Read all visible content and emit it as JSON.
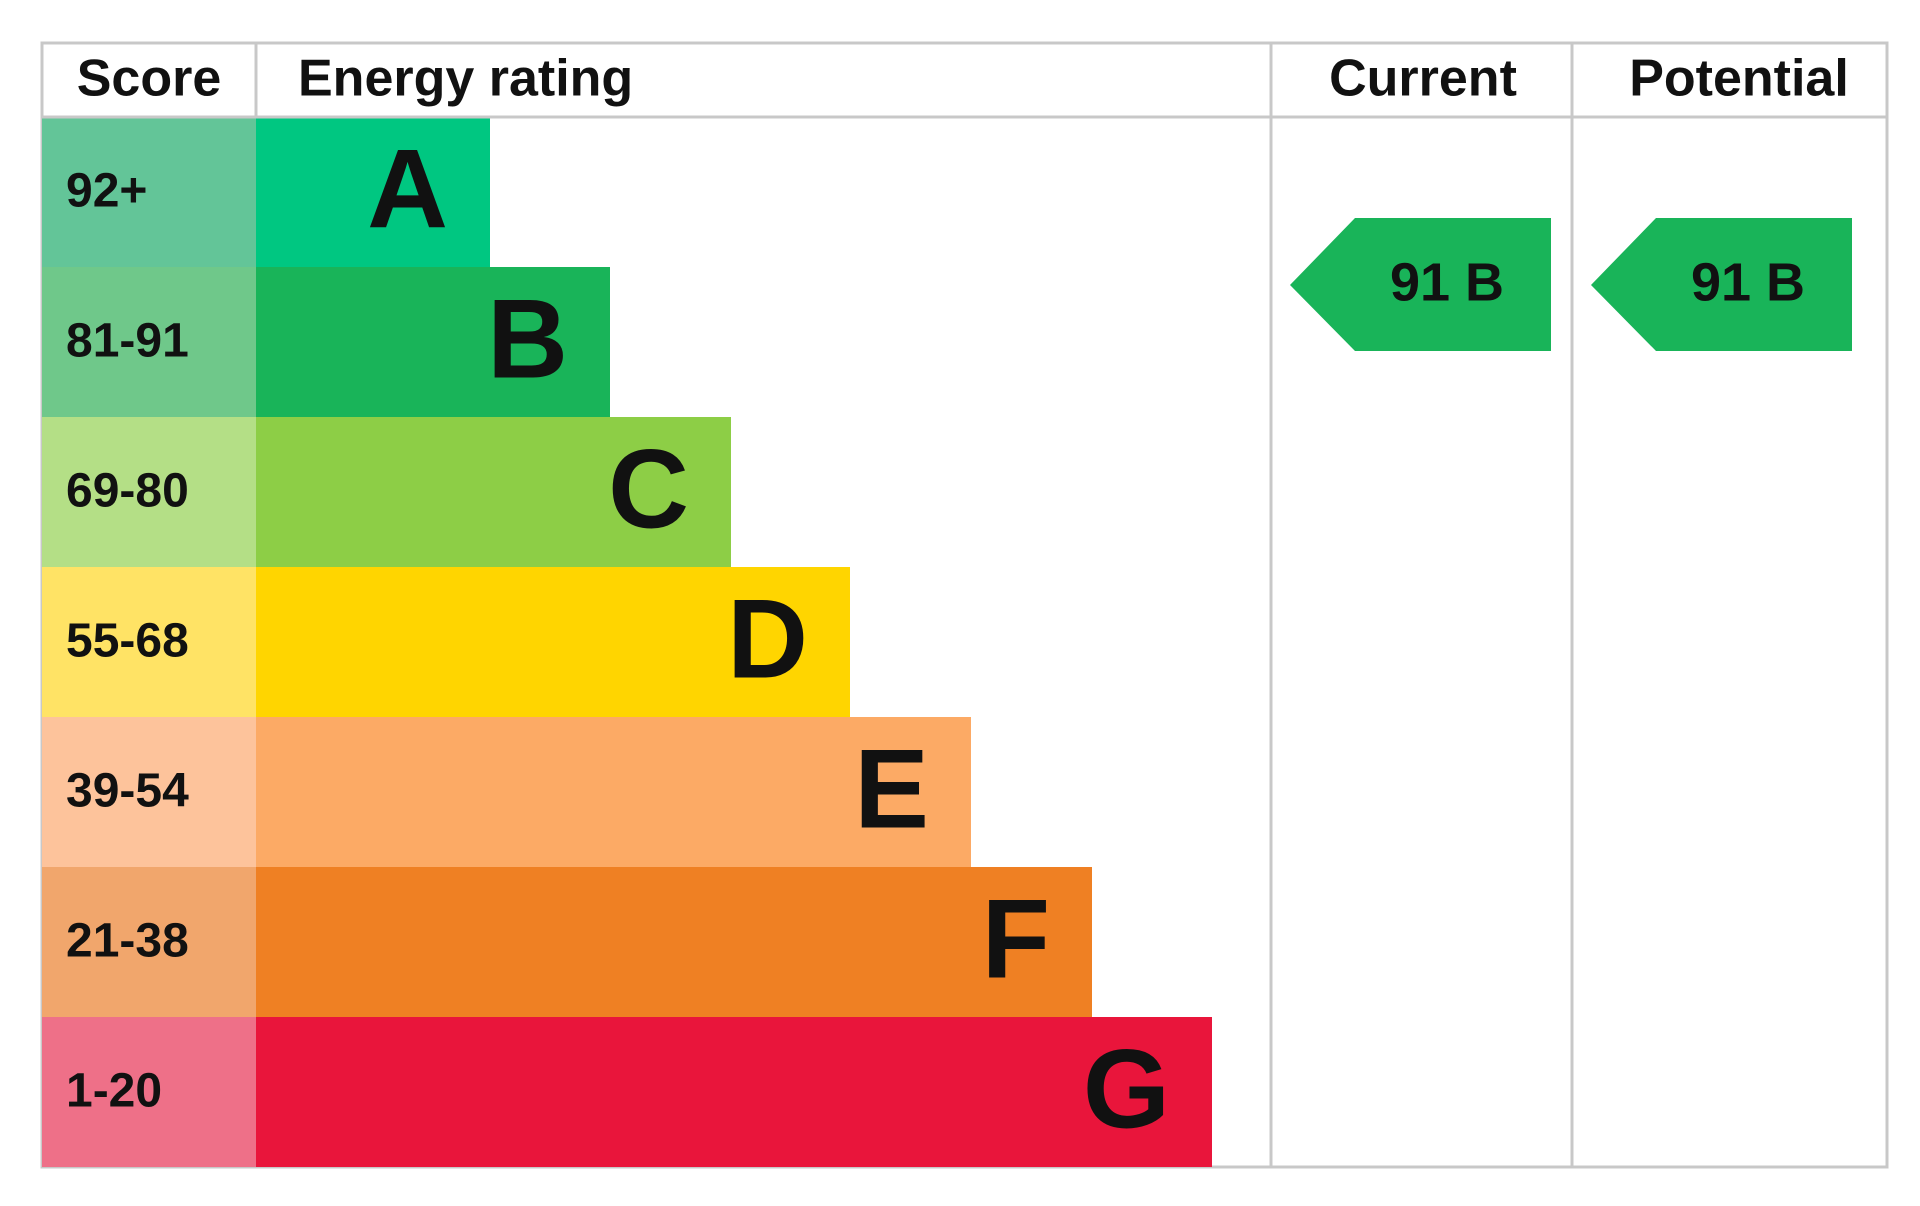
{
  "header": {
    "score": "Score",
    "energy_rating": "Energy rating",
    "current": "Current",
    "potential": "Potential"
  },
  "rows": [
    {
      "score": "92+",
      "rating": "A"
    },
    {
      "score": "81-91",
      "rating": "B"
    },
    {
      "score": "69-80",
      "rating": "C"
    },
    {
      "score": "55-68",
      "rating": "D"
    },
    {
      "score": "39-54",
      "rating": "E"
    },
    {
      "score": "21-38",
      "rating": "F"
    },
    {
      "score": "1-20",
      "rating": "G"
    }
  ],
  "current": "91 B",
  "potential": "91 B"
}
